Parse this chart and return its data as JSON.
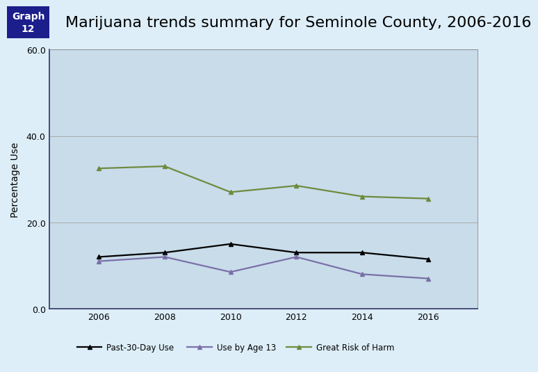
{
  "title": "Marijuana trends summary for Seminole County, 2006-2016",
  "graph_label": "Graph\n12",
  "ylabel": "Percentage Use",
  "years": [
    2006,
    2008,
    2010,
    2012,
    2014,
    2016
  ],
  "past_30_day": [
    12.0,
    13.0,
    15.0,
    13.0,
    13.0,
    11.5
  ],
  "use_by_age13": [
    11.0,
    12.0,
    8.5,
    12.0,
    8.0,
    7.0
  ],
  "great_risk": [
    32.5,
    33.0,
    27.0,
    28.5,
    26.0,
    25.5
  ],
  "ylim": [
    0.0,
    60.0
  ],
  "yticks": [
    0.0,
    20.0,
    40.0,
    60.0
  ],
  "color_past30": "#000000",
  "color_age13": "#7b70a8",
  "color_risk": "#6e8b3d",
  "bg_color": "#cfe0f0",
  "outer_bg": "#ddeef8",
  "plot_bg": "#c8dcea",
  "header_bg": "#1c1e8c",
  "header_text": "#ffffff",
  "legend_labels": [
    "Past-30-Day Use",
    "Use by Age 13",
    "Great Risk of Harm"
  ],
  "title_fontsize": 16,
  "ylabel_fontsize": 10,
  "tick_fontsize": 9,
  "legend_fontsize": 8.5
}
